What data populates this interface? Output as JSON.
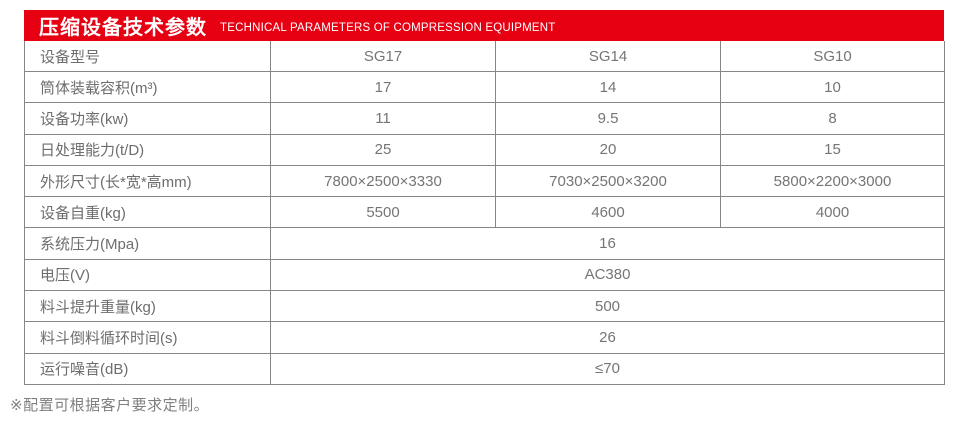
{
  "banner": {
    "title_zh": "压缩设备技术参数",
    "title_en": "TECHNICAL PARAMETERS OF COMPRESSION EQUIPMENT",
    "background_color": "#e60012",
    "text_color": "#ffffff"
  },
  "table": {
    "rows": [
      {
        "label": "设备型号",
        "values": [
          "SG17",
          "SG14",
          "SG10"
        ]
      },
      {
        "label": "筒体装载容积(m³)",
        "values": [
          "17",
          "14",
          "10"
        ]
      },
      {
        "label": "设备功率(kw)",
        "values": [
          "11",
          "9.5",
          "8"
        ]
      },
      {
        "label": "日处理能力(t/D)",
        "values": [
          "25",
          "20",
          "15"
        ]
      },
      {
        "label": "外形尺寸(长*宽*高mm)",
        "values": [
          "7800×2500×3330",
          "7030×2500×3200",
          "5800×2200×3000"
        ]
      },
      {
        "label": "设备自重(kg)",
        "values": [
          "5500",
          "4600",
          "4000"
        ]
      },
      {
        "label": "系统压力(Mpa)",
        "values": [
          "16"
        ]
      },
      {
        "label": "电压(V)",
        "values": [
          "AC380"
        ]
      },
      {
        "label": "料斗提升重量(kg)",
        "values": [
          "500"
        ]
      },
      {
        "label": "料斗倒料循环时间(s)",
        "values": [
          "26"
        ]
      },
      {
        "label": "运行噪音(dB)",
        "values": [
          "≤70"
        ]
      }
    ],
    "border_color": "#868686",
    "label_text_color": "#6d6d6d",
    "value_text_color": "#757575"
  },
  "footnote": "※配置可根据客户要求定制。"
}
